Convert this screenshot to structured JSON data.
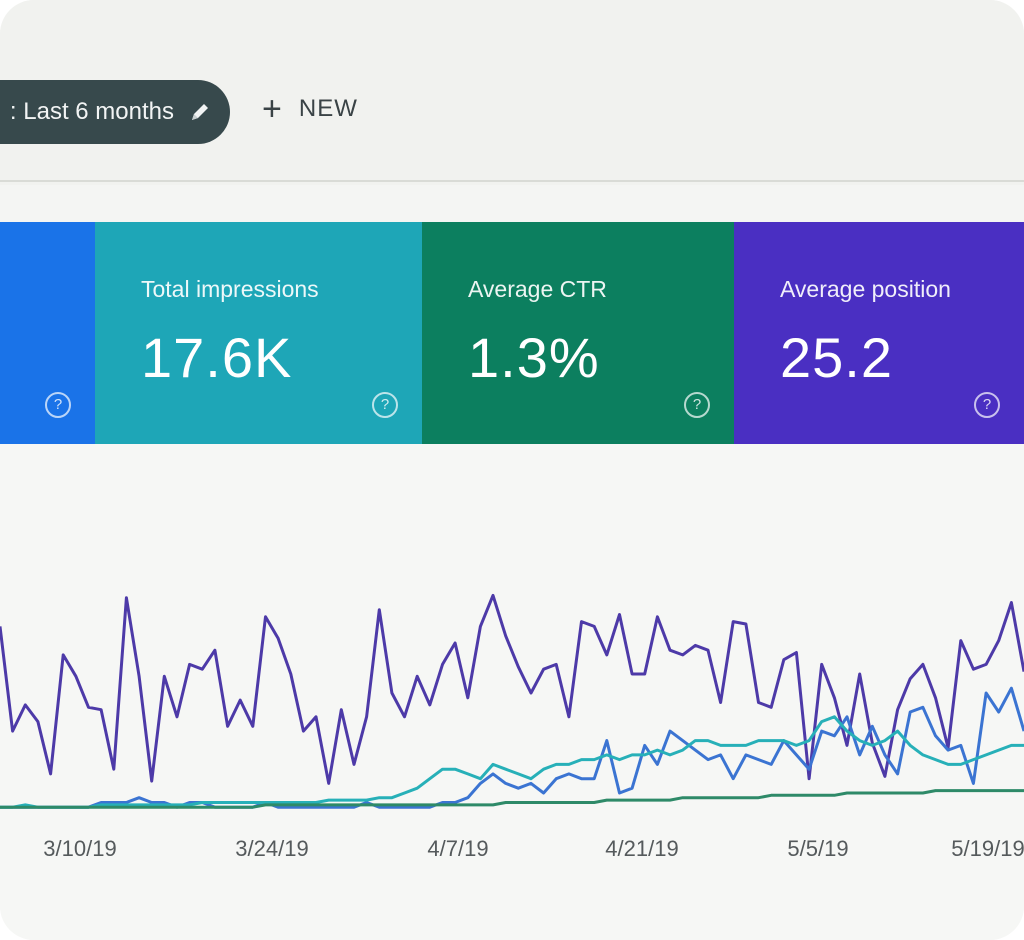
{
  "filter": {
    "label": ": Last 6 months",
    "icon": "pencil-icon"
  },
  "toolbar": {
    "new_label": "NEW",
    "new_icon": "plus-icon"
  },
  "metrics": [
    {
      "title": "",
      "value": "",
      "color": "#1a73e8"
    },
    {
      "title": "Total impressions",
      "value": "17.6K",
      "color": "#1ea6b7"
    },
    {
      "title": "Average CTR",
      "value": "1.3%",
      "color": "#0c7f5f"
    },
    {
      "title": "Average position",
      "value": "25.2",
      "color": "#4a2fc2"
    }
  ],
  "help_icon_text": "?",
  "chart_data": {
    "type": "line",
    "x_ticks": [
      "3/10/19",
      "3/24/19",
      "4/7/19",
      "4/21/19",
      "5/5/19",
      "5/19/19"
    ],
    "ylim": [
      0,
      100
    ],
    "grid": false,
    "series": [
      {
        "color": "#4d3aa8",
        "values": [
          78,
          34,
          45,
          38,
          16,
          66,
          57,
          44,
          43,
          18,
          90,
          57,
          13,
          57,
          40,
          62,
          60,
          68,
          36,
          47,
          36,
          82,
          73,
          58,
          34,
          40,
          12,
          43,
          20,
          40,
          85,
          50,
          40,
          57,
          45,
          62,
          71,
          48,
          78,
          91,
          74,
          61,
          50,
          60,
          62,
          40,
          80,
          78,
          66,
          83,
          58,
          58,
          82,
          68,
          66,
          70,
          68,
          46,
          80,
          79,
          46,
          44,
          64,
          67,
          14,
          62,
          48,
          28,
          58,
          29,
          15,
          43,
          56,
          62,
          48,
          27,
          72,
          60,
          62,
          72,
          88,
          59
        ]
      },
      {
        "color": "#3b74d2",
        "values": [
          2,
          2,
          2,
          2,
          2,
          2,
          2,
          2,
          4,
          4,
          4,
          6,
          4,
          4,
          2,
          4,
          4,
          2,
          2,
          2,
          2,
          4,
          2,
          2,
          2,
          2,
          2,
          2,
          2,
          4,
          2,
          2,
          2,
          2,
          2,
          4,
          4,
          6,
          12,
          16,
          12,
          10,
          12,
          8,
          14,
          16,
          14,
          14,
          30,
          8,
          10,
          28,
          20,
          34,
          30,
          26,
          22,
          24,
          14,
          24,
          22,
          20,
          30,
          24,
          18,
          34,
          32,
          40,
          24,
          36,
          24,
          16,
          42,
          44,
          32,
          26,
          28,
          12,
          50,
          42,
          52,
          34
        ]
      },
      {
        "color": "#27b0b8",
        "values": [
          2,
          2,
          3,
          2,
          2,
          2,
          2,
          2,
          3,
          3,
          3,
          3,
          3,
          3,
          3,
          3,
          4,
          4,
          4,
          4,
          4,
          4,
          4,
          4,
          4,
          4,
          5,
          5,
          5,
          5,
          6,
          6,
          8,
          10,
          14,
          18,
          18,
          16,
          14,
          20,
          18,
          16,
          14,
          18,
          20,
          20,
          22,
          22,
          24,
          22,
          24,
          24,
          26,
          24,
          26,
          30,
          30,
          28,
          28,
          28,
          30,
          30,
          30,
          28,
          30,
          38,
          40,
          34,
          30,
          28,
          30,
          34,
          28,
          24,
          22,
          20,
          20,
          22,
          24,
          26,
          28,
          28
        ]
      },
      {
        "color": "#2e8a68",
        "values": [
          2,
          2,
          2,
          2,
          2,
          2,
          2,
          2,
          2,
          2,
          2,
          2,
          2,
          2,
          2,
          2,
          2,
          2,
          2,
          2,
          2,
          3,
          3,
          3,
          3,
          3,
          3,
          3,
          3,
          3,
          3,
          3,
          3,
          3,
          3,
          3,
          3,
          3,
          3,
          3,
          4,
          4,
          4,
          4,
          4,
          4,
          4,
          4,
          5,
          5,
          5,
          5,
          5,
          5,
          6,
          6,
          6,
          6,
          6,
          6,
          6,
          7,
          7,
          7,
          7,
          7,
          7,
          8,
          8,
          8,
          8,
          8,
          8,
          8,
          9,
          9,
          9,
          9,
          9,
          9,
          9,
          9
        ]
      }
    ]
  }
}
